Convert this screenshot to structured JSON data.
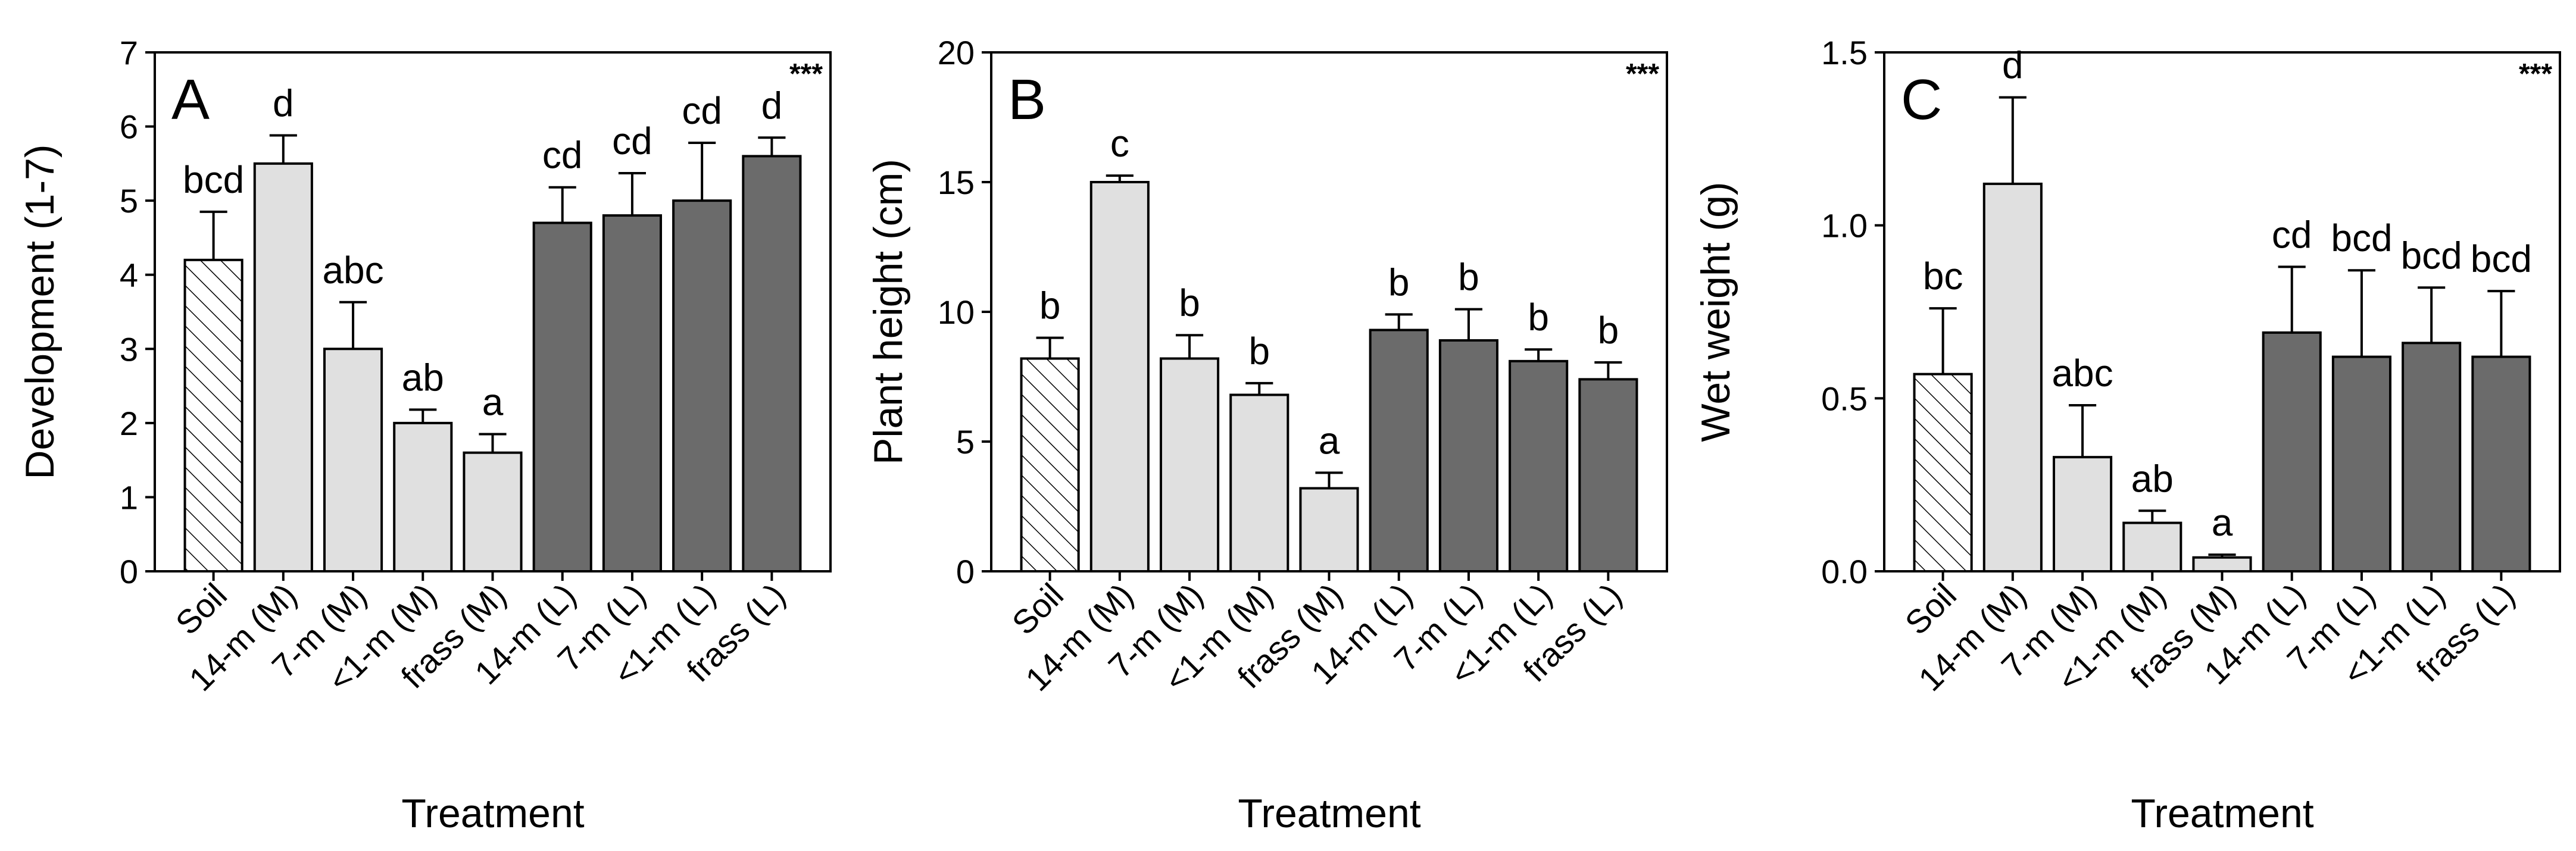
{
  "colors": {
    "soil": "#ffffff",
    "M": "#e0e0e0",
    "L": "#6b6b6b",
    "stroke": "#000000"
  },
  "chart_data": [
    {
      "type": "bar",
      "panel": "A",
      "significance": "***",
      "xlabel": "Treatment",
      "ylabel": "Development (1-7)",
      "ylim": [
        0,
        7
      ],
      "yticks": [
        "0",
        "1",
        "2",
        "3",
        "4",
        "5",
        "6",
        "7"
      ],
      "categories": [
        "Soil",
        "14-m (M)",
        "7-m (M)",
        "<1-m (M)",
        "frass (M)",
        "14-m (L)",
        "7-m (L)",
        "<1-m (L)",
        "frass (L)"
      ],
      "groups": [
        "soil",
        "M",
        "M",
        "M",
        "M",
        "L",
        "L",
        "L",
        "L"
      ],
      "values": [
        4.2,
        5.5,
        3.0,
        2.0,
        1.6,
        4.7,
        4.8,
        5.0,
        5.6
      ],
      "errors": [
        0.65,
        0.38,
        0.63,
        0.18,
        0.25,
        0.48,
        0.57,
        0.78,
        0.25
      ],
      "letters": [
        "bcd",
        "d",
        "abc",
        "ab",
        "a",
        "cd",
        "cd",
        "cd",
        "d"
      ],
      "grid": false
    },
    {
      "type": "bar",
      "panel": "B",
      "significance": "***",
      "xlabel": "Treatment",
      "ylabel": "Plant height (cm)",
      "ylim": [
        0,
        20
      ],
      "yticks": [
        "0",
        "5",
        "10",
        "15",
        "20"
      ],
      "categories": [
        "Soil",
        "14-m (M)",
        "7-m (M)",
        "<1-m (M)",
        "frass (M)",
        "14-m (L)",
        "7-m (L)",
        "<1-m (L)",
        "frass (L)"
      ],
      "groups": [
        "soil",
        "M",
        "M",
        "M",
        "M",
        "L",
        "L",
        "L",
        "L"
      ],
      "values": [
        8.2,
        15.0,
        8.2,
        6.8,
        3.2,
        9.3,
        8.9,
        8.1,
        7.4
      ],
      "errors": [
        0.8,
        0.25,
        0.9,
        0.45,
        0.6,
        0.6,
        1.2,
        0.45,
        0.65
      ],
      "letters": [
        "b",
        "c",
        "b",
        "b",
        "a",
        "b",
        "b",
        "b",
        "b"
      ],
      "grid": false
    },
    {
      "type": "bar",
      "panel": "C",
      "significance": "***",
      "xlabel": "Treatment",
      "ylabel": "Wet weight (g)",
      "ylim": [
        0,
        1.5
      ],
      "yticks": [
        "0.0",
        "0.5",
        "1.0",
        "1.5"
      ],
      "categories": [
        "Soil",
        "14-m (M)",
        "7-m (M)",
        "<1-m (M)",
        "frass (M)",
        "14-m (L)",
        "7-m (L)",
        "<1-m (L)",
        "frass (L)"
      ],
      "groups": [
        "soil",
        "M",
        "M",
        "M",
        "M",
        "L",
        "L",
        "L",
        "L"
      ],
      "values": [
        0.57,
        1.12,
        0.33,
        0.14,
        0.04,
        0.69,
        0.62,
        0.66,
        0.62
      ],
      "errors": [
        0.19,
        0.25,
        0.15,
        0.035,
        0.008,
        0.19,
        0.25,
        0.16,
        0.19
      ],
      "letters": [
        "bc",
        "d",
        "abc",
        "ab",
        "a",
        "cd",
        "bcd",
        "bcd",
        "bcd"
      ],
      "grid": false
    }
  ]
}
